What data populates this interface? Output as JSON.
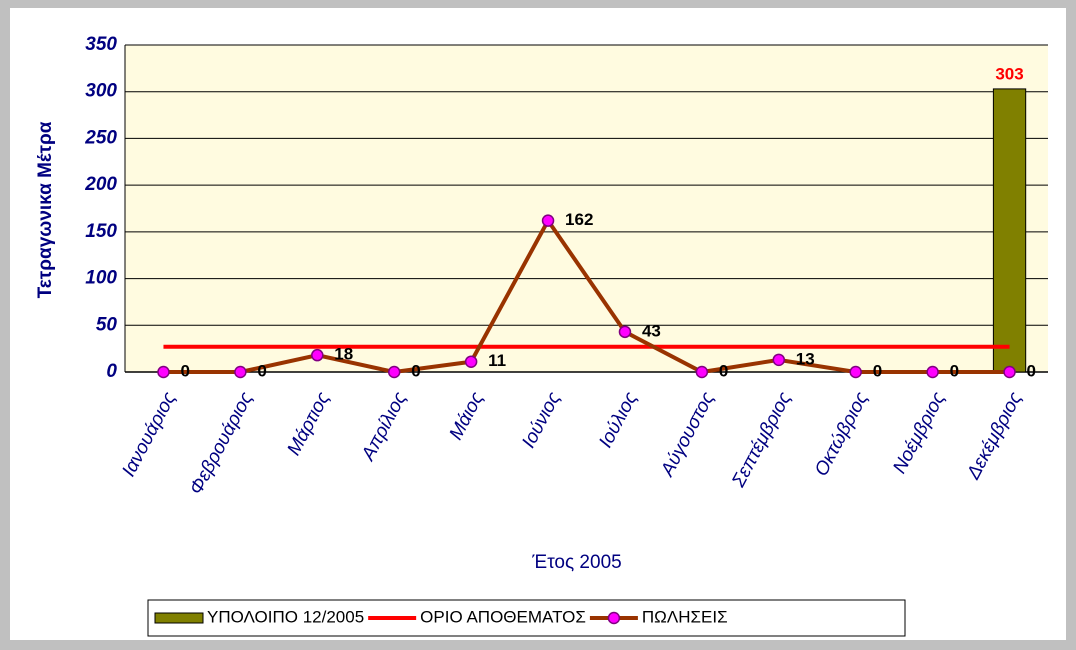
{
  "chart_data": {
    "type": "combo",
    "ylabel": "Τετραγωνικα Μέτρα",
    "xlabel": "Έτος 2005",
    "categories": [
      "Ιανουάριος",
      "Φεβρουάριος",
      "Μάρτιος",
      "Απρίλιος",
      "Μάιος",
      "Ιούνιος",
      "Ιούλιος",
      "Αύγουστος",
      "Σεπτέμβριος",
      "Οκτώβριος",
      "Νοέμβριος",
      "Δεκέμβριος"
    ],
    "series": [
      {
        "name": "ΥΠΟΛΟΙΠΟ 12/2005",
        "type": "bar",
        "color": "#808000",
        "label_color": "#ff0000",
        "labels": true,
        "values": [
          null,
          null,
          null,
          null,
          null,
          null,
          null,
          null,
          null,
          null,
          null,
          303
        ]
      },
      {
        "name": "ΟΡΙΟ ΑΠΟΘΕΜΑΤΟΣ",
        "type": "line",
        "color": "#ff0000",
        "labels": false,
        "markers": false,
        "values": [
          27,
          27,
          27,
          27,
          27,
          27,
          27,
          27,
          27,
          27,
          27,
          27
        ]
      },
      {
        "name": "ΠΩΛΗΣΕΙΣ",
        "type": "line",
        "color": "#993300",
        "marker_color": "#ff00ff",
        "label_color": "#000000",
        "labels": true,
        "markers": true,
        "values": [
          0,
          0,
          18,
          0,
          11,
          162,
          43,
          0,
          13,
          0,
          0,
          0
        ]
      }
    ],
    "ylim": [
      0,
      350
    ],
    "yticks": [
      0,
      50,
      100,
      150,
      200,
      250,
      300,
      350
    ],
    "grid": true,
    "legend": "bottom"
  }
}
